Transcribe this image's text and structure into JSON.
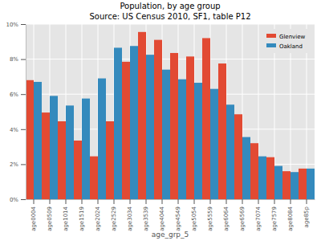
{
  "chart_data": {
    "type": "bar",
    "title": "Population, by age group",
    "subtitle": "Source: US Census 2010, SF1, table P12",
    "x_label": "age_grp_5",
    "categories": [
      "age0004",
      "age0509",
      "age1014",
      "age1519",
      "age2024",
      "age2529",
      "age3034",
      "age3539",
      "age4044",
      "age4549",
      "age5054",
      "age5559",
      "age6064",
      "age6569",
      "age7074",
      "age7579",
      "age8084",
      "age85p"
    ],
    "series": [
      {
        "name": "Glenview",
        "color": "#E24A33",
        "values": [
          6.8,
          4.95,
          4.45,
          3.35,
          2.45,
          4.45,
          7.85,
          9.55,
          9.1,
          8.35,
          8.15,
          9.2,
          7.75,
          4.85,
          3.2,
          2.4,
          1.6,
          1.75
        ]
      },
      {
        "name": "Oakland",
        "color": "#348ABD",
        "values": [
          6.7,
          5.9,
          5.35,
          5.75,
          6.9,
          8.65,
          8.75,
          8.25,
          7.4,
          6.85,
          6.65,
          6.3,
          5.4,
          3.55,
          2.45,
          1.9,
          1.55,
          1.75
        ]
      }
    ],
    "ylim": [
      0,
      10
    ],
    "yticks": [
      {
        "value": 0,
        "label": "0%"
      },
      {
        "value": 2,
        "label": "2%"
      },
      {
        "value": 4,
        "label": "4%"
      },
      {
        "value": 6,
        "label": "6%"
      },
      {
        "value": 8,
        "label": "8%"
      },
      {
        "value": 10,
        "label": "10%"
      }
    ],
    "grid": true,
    "legend": "upper right"
  }
}
